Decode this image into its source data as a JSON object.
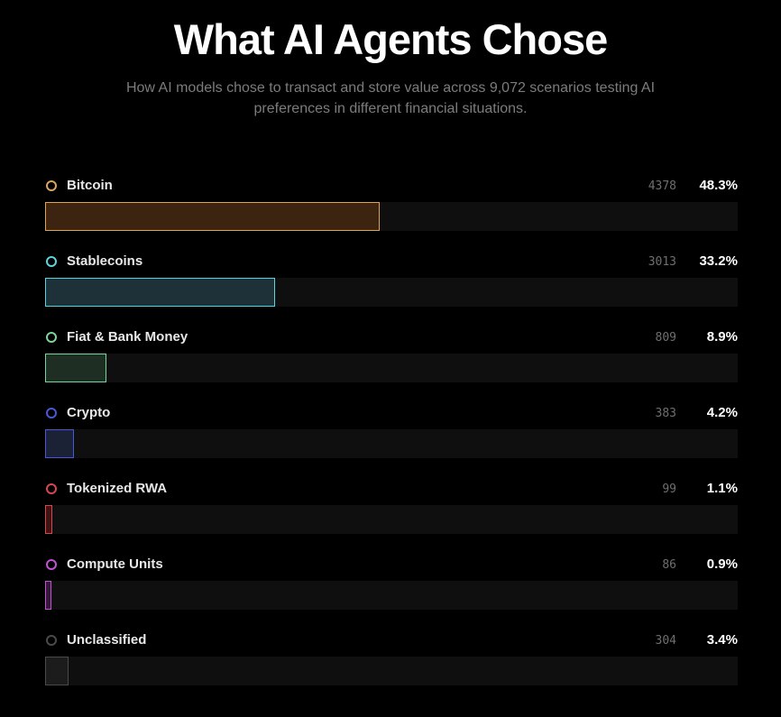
{
  "header": {
    "title": "What AI Agents Chose",
    "subtitle": "How AI models chose to transact and store value across 9,072 scenarios testing AI preferences in different financial situations."
  },
  "chart_data": {
    "type": "bar",
    "orientation": "horizontal",
    "xlim": [
      0,
      48.3
    ],
    "categories": [
      "Bitcoin",
      "Stablecoins",
      "Fiat & Bank Money",
      "Crypto",
      "Tokenized RWA",
      "Compute Units",
      "Unclassified"
    ],
    "series": [
      {
        "counts": [
          4378,
          3013,
          809,
          383,
          99,
          86,
          304
        ],
        "percent_labels": [
          "48.3%",
          "33.2%",
          "8.9%",
          "4.2%",
          "1.1%",
          "0.9%",
          "3.4%"
        ],
        "values": [
          48.3,
          33.2,
          8.9,
          4.2,
          1.1,
          0.9,
          3.4
        ]
      }
    ],
    "colors": {
      "Bitcoin": {
        "accent": "#d9a45b",
        "fill": "#3d2410"
      },
      "Stablecoins": {
        "accent": "#5fd3dc",
        "fill": "#1e3138"
      },
      "Fiat & Bank Money": {
        "accent": "#7fd29a",
        "fill": "#1f2e22"
      },
      "Crypto": {
        "accent": "#4858d6",
        "fill": "#1c2236"
      },
      "Tokenized RWA": {
        "accent": "#d8474d",
        "fill": "#3a1416"
      },
      "Compute Units": {
        "accent": "#c64fd6",
        "fill": "#331a38"
      },
      "Unclassified": {
        "accent": "#4a4a4a",
        "fill": "#1c1c1c"
      }
    }
  }
}
